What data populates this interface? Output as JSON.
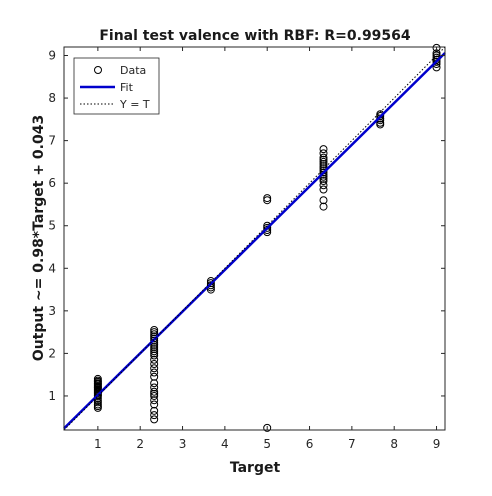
{
  "chart_data": {
    "type": "scatter",
    "title": "Final test valence with RBF: R=0.99564",
    "xlabel": "Target",
    "ylabel": "Output ~= 0.98*Target + 0.043",
    "xlim": [
      0.2,
      9.2
    ],
    "ylim": [
      0.2,
      9.2
    ],
    "xticks": [
      1,
      2,
      3,
      4,
      5,
      6,
      7,
      8,
      9
    ],
    "yticks": [
      1,
      2,
      3,
      4,
      5,
      6,
      7,
      8,
      9
    ],
    "grid": false,
    "legend": {
      "placement": "top-left",
      "entries": [
        "Data",
        "Fit",
        "Y = T"
      ]
    },
    "colors": {
      "data_marker": "#000000",
      "fit_line": "#0000cc",
      "identity_line": "#000000"
    },
    "fit": {
      "slope": 0.98,
      "intercept": 0.043
    },
    "series": [
      {
        "name": "Data",
        "points": [
          {
            "x": 1.0,
            "y": [
              0.72,
              0.76,
              0.8,
              0.85,
              0.9,
              0.95,
              1.0,
              1.02,
              1.05,
              1.08,
              1.1,
              1.12,
              1.15,
              1.18,
              1.2,
              1.22,
              1.25,
              1.28,
              1.3,
              1.33,
              1.36,
              1.4
            ]
          },
          {
            "x": 2.33,
            "y": [
              0.45,
              0.55,
              0.65,
              0.8,
              0.9,
              1.0,
              1.05,
              1.1,
              1.2,
              1.3,
              1.45,
              1.55,
              1.65,
              1.75,
              1.85,
              1.95,
              2.0,
              2.05,
              2.1,
              2.15,
              2.2,
              2.25,
              2.3,
              2.35,
              2.4,
              2.45,
              2.5,
              2.55
            ]
          },
          {
            "x": 3.67,
            "y": [
              3.5,
              3.55,
              3.6,
              3.65,
              3.7
            ]
          },
          {
            "x": 5.0,
            "y": [
              0.25,
              4.85,
              4.9,
              4.95,
              5.0,
              5.6,
              5.65
            ]
          },
          {
            "x": 6.33,
            "y": [
              5.45,
              5.6,
              5.85,
              5.95,
              6.05,
              6.1,
              6.15,
              6.2,
              6.25,
              6.3,
              6.35,
              6.4,
              6.45,
              6.5,
              6.55,
              6.6,
              6.7,
              6.8
            ]
          },
          {
            "x": 7.67,
            "y": [
              7.38,
              7.42,
              7.48,
              7.52,
              7.58,
              7.62
            ]
          },
          {
            "x": 9.0,
            "y": [
              8.72,
              8.8,
              8.85,
              8.9,
              8.95,
              9.0,
              9.05,
              9.18
            ]
          }
        ]
      }
    ]
  }
}
